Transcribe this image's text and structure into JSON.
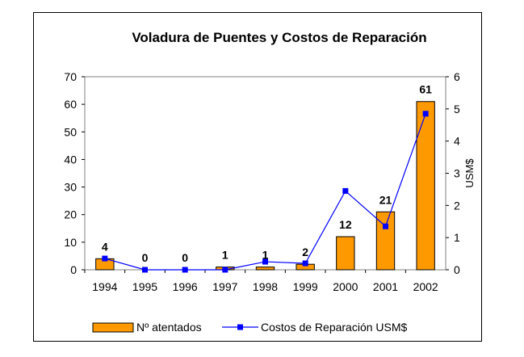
{
  "chart_data": {
    "type": "bar",
    "title": "Voladura de Puentes y Costos de Reparación",
    "categories": [
      "1994",
      "1995",
      "1996",
      "1997",
      "1998",
      "1999",
      "2000",
      "2001",
      "2002"
    ],
    "series": [
      {
        "name": "Nº atentados",
        "kind": "bar",
        "axis": "left",
        "color": "#FF9900",
        "values": [
          4,
          0,
          0,
          1,
          1,
          2,
          12,
          21,
          61
        ],
        "labels": [
          "4",
          "0",
          "0",
          "1",
          "1",
          "2",
          "12",
          "21",
          "61"
        ]
      },
      {
        "name": "Costos de Reparación USM$",
        "kind": "line",
        "axis": "right",
        "color": "#0000FF",
        "values": [
          0.35,
          0.0,
          0.0,
          0.0,
          0.25,
          0.2,
          2.45,
          1.35,
          4.85
        ]
      }
    ],
    "y_left": {
      "label": "",
      "ylim": [
        0,
        70
      ],
      "ticks": [
        "0",
        "10",
        "20",
        "30",
        "40",
        "50",
        "60",
        "70"
      ]
    },
    "y_right": {
      "label": "USM$",
      "ylim": [
        0,
        6
      ],
      "ticks": [
        "0",
        "1",
        "2",
        "3",
        "4",
        "5",
        "6"
      ]
    },
    "xlabel": "",
    "legend_position": "bottom"
  }
}
